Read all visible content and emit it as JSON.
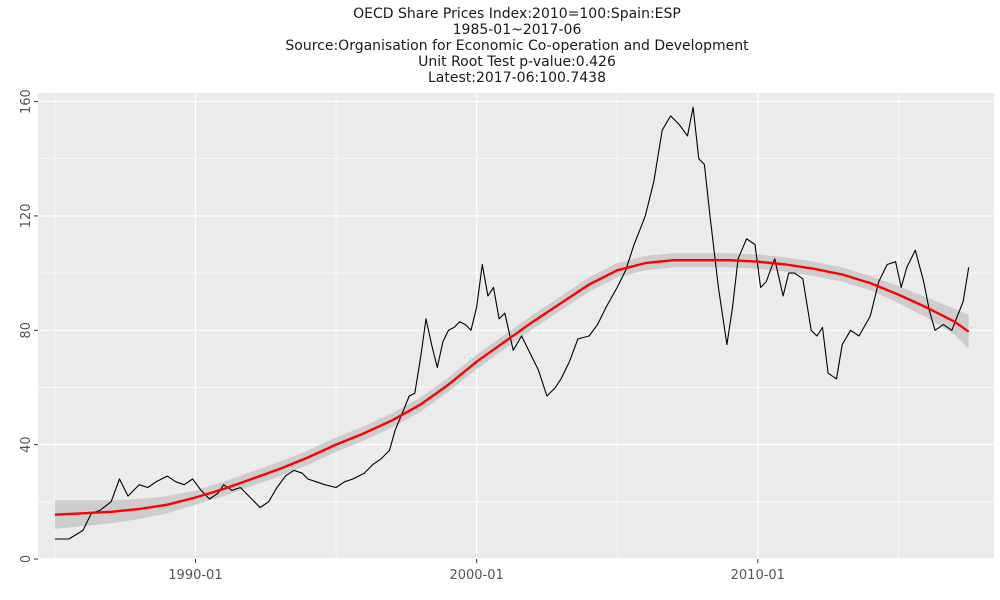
{
  "chart_data": {
    "type": "line",
    "title_lines": [
      "OECD Share Prices Index:2010=100:Spain:ESP",
      "1985-01~2017-06",
      "Source:Organisation for Economic Co-operation and Development",
      "Unit Root Test p-value:0.426",
      "Latest:2017-06:100.7438"
    ],
    "xlabel": "",
    "ylabel": "",
    "x_ticks": [
      "1990-01",
      "2000-01",
      "2010-01"
    ],
    "y_ticks": [
      "0",
      "40",
      "80",
      "120",
      "160"
    ],
    "xlim": [
      1984.4,
      2018.4
    ],
    "ylim": [
      0,
      163
    ],
    "grid": true,
    "colors": {
      "panel": "#ebebeb",
      "grid": "#ffffff",
      "series": "#000000",
      "smooth": "#ff0000",
      "ribbon": "#c8c8c8"
    },
    "series": [
      {
        "type": "line",
        "x": [
          1985.0,
          1985.5,
          1986.0,
          1986.3,
          1986.6,
          1987.0,
          1987.3,
          1987.6,
          1987.8,
          1988.0,
          1988.3,
          1988.6,
          1989.0,
          1989.3,
          1989.6,
          1989.9,
          1990.2,
          1990.5,
          1990.8,
          1991.0,
          1991.3,
          1991.6,
          1992.0,
          1992.3,
          1992.6,
          1992.9,
          1993.2,
          1993.5,
          1993.8,
          1994.0,
          1994.3,
          1994.6,
          1995.0,
          1995.3,
          1995.6,
          1996.0,
          1996.3,
          1996.6,
          1996.9,
          1997.1,
          1997.4,
          1997.6,
          1997.8,
          1998.0,
          1998.2,
          1998.4,
          1998.6,
          1998.8,
          1999.0,
          1999.2,
          1999.4,
          1999.6,
          1999.8,
          2000.0,
          2000.2,
          2000.4,
          2000.6,
          2000.8,
          2001.0,
          2001.3,
          2001.6,
          2001.9,
          2002.2,
          2002.5,
          2002.8,
          2003.0,
          2003.3,
          2003.6,
          2004.0,
          2004.3,
          2004.6,
          2005.0,
          2005.3,
          2005.6,
          2006.0,
          2006.3,
          2006.6,
          2006.9,
          2007.2,
          2007.5,
          2007.7,
          2007.9,
          2008.1,
          2008.3,
          2008.6,
          2008.9,
          2009.1,
          2009.3,
          2009.6,
          2009.9,
          2010.1,
          2010.3,
          2010.6,
          2010.9,
          2011.1,
          2011.3,
          2011.6,
          2011.9,
          2012.1,
          2012.3,
          2012.5,
          2012.8,
          2013.0,
          2013.3,
          2013.6,
          2014.0,
          2014.3,
          2014.6,
          2014.9,
          2015.1,
          2015.3,
          2015.6,
          2015.9,
          2016.1,
          2016.3,
          2016.6,
          2016.9,
          2017.1,
          2017.3,
          2017.5
        ],
        "y": [
          7,
          7,
          10,
          16,
          17,
          20,
          28,
          22,
          24,
          26,
          25,
          27,
          29,
          27,
          26,
          28,
          24,
          21,
          23,
          26,
          24,
          25,
          21,
          18,
          20,
          25,
          29,
          31,
          30,
          28,
          27,
          26,
          25,
          27,
          28,
          30,
          33,
          35,
          38,
          45,
          52,
          57,
          58,
          70,
          84,
          75,
          67,
          76,
          80,
          81,
          83,
          82,
          80,
          88,
          103,
          92,
          95,
          84,
          86,
          73,
          78,
          72,
          66,
          57,
          60,
          63,
          69,
          77,
          78,
          82,
          88,
          95,
          101,
          110,
          120,
          132,
          150,
          155,
          152,
          148,
          158,
          140,
          138,
          120,
          95,
          75,
          88,
          105,
          112,
          110,
          95,
          97,
          105,
          92,
          100,
          100,
          98,
          80,
          78,
          81,
          65,
          63,
          75,
          80,
          78,
          85,
          97,
          103,
          104,
          95,
          102,
          108,
          97,
          87,
          80,
          82,
          80,
          85,
          90,
          102
        ]
      },
      {
        "type": "smooth",
        "x": [
          1985.0,
          1986.0,
          1987.0,
          1988.0,
          1989.0,
          1990.0,
          1991.0,
          1992.0,
          1993.0,
          1994.0,
          1995.0,
          1996.0,
          1997.0,
          1998.0,
          1999.0,
          2000.0,
          2001.0,
          2002.0,
          2003.0,
          2004.0,
          2005.0,
          2006.0,
          2007.0,
          2008.0,
          2009.0,
          2010.0,
          2011.0,
          2012.0,
          2013.0,
          2014.0,
          2015.0,
          2016.0,
          2017.0,
          2017.5
        ],
        "y": [
          15.5,
          16,
          16.5,
          17.5,
          19,
          21.5,
          24.5,
          28,
          31.5,
          35.5,
          40,
          44,
          48.5,
          54,
          61,
          69,
          76,
          83,
          89.5,
          96,
          101,
          103.5,
          104.5,
          104.5,
          104.5,
          104,
          103,
          101.5,
          99.5,
          96.5,
          92.5,
          88,
          83,
          79.5
        ],
        "band": [
          5,
          4.5,
          4,
          3.5,
          3,
          2.5,
          2.5,
          2.5,
          2.5,
          2.5,
          2.5,
          2.5,
          2.5,
          2.5,
          2.5,
          2.5,
          2.5,
          2.5,
          2.5,
          2.5,
          2.5,
          2.5,
          2.5,
          2.5,
          2.5,
          2.5,
          2.5,
          2.5,
          2.5,
          2.5,
          3,
          3.5,
          4.5,
          6
        ]
      }
    ]
  }
}
